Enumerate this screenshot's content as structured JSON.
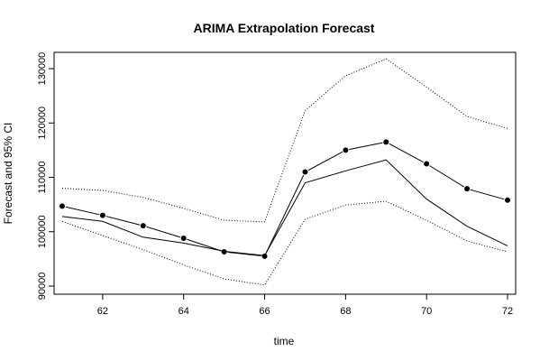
{
  "chart_data": {
    "type": "line",
    "title": "ARIMA Extrapolation Forecast",
    "xlabel": "time",
    "ylabel": "Forecast and 95% CI",
    "x": [
      61,
      62,
      63,
      64,
      65,
      66,
      67,
      68,
      69,
      70,
      71,
      72
    ],
    "xlim": [
      60.8,
      72.2
    ],
    "ylim": [
      88500,
      133000
    ],
    "xticks": [
      62,
      64,
      66,
      68,
      70,
      72
    ],
    "yticks": [
      90000,
      100000,
      110000,
      120000,
      130000
    ],
    "grid": false,
    "series": [
      {
        "style": "line-with-points",
        "values": [
          104700,
          103000,
          101100,
          98800,
          96300,
          95500,
          111000,
          115000,
          116500,
          112500,
          107900,
          105800
        ]
      },
      {
        "style": "line",
        "values": [
          102800,
          101900,
          99000,
          97900,
          96400,
          95600,
          109000,
          111200,
          113200,
          106000,
          101000,
          97400
        ]
      },
      {
        "style": "dotted",
        "values": [
          108000,
          107600,
          106300,
          104300,
          102100,
          101800,
          122300,
          128700,
          131800,
          126600,
          121200,
          119000
        ]
      },
      {
        "style": "dotted",
        "values": [
          101900,
          99300,
          96700,
          93900,
          91300,
          90200,
          102300,
          104900,
          105600,
          102100,
          98300,
          96300
        ]
      }
    ]
  }
}
